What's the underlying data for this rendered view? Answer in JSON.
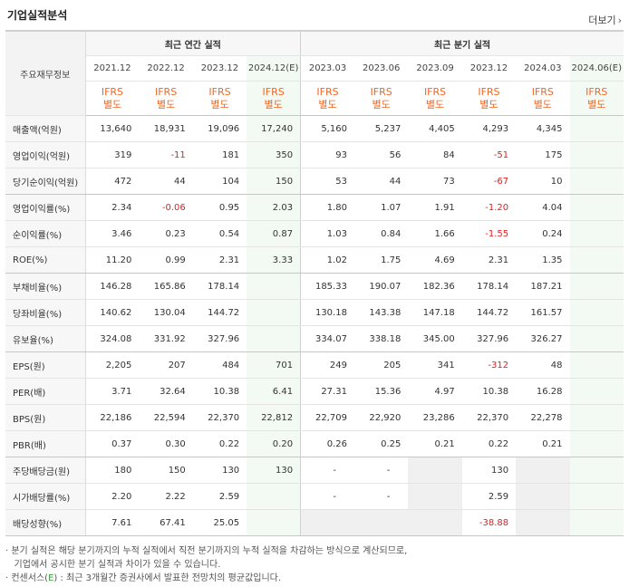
{
  "header": {
    "title": "기업실적분석",
    "more_label": "더보기",
    "more_arrow": "›"
  },
  "table": {
    "label_header": "주요재무정보",
    "group_annual": "최근 연간 실적",
    "group_quarter": "최근 분기 실적",
    "periods": [
      "2021.12",
      "2022.12",
      "2023.12",
      "2024.12(E)",
      "2023.03",
      "2023.06",
      "2023.09",
      "2023.12",
      "2024.03",
      "2024.06(E)"
    ],
    "ifrs_top": "IFRS",
    "ifrs_bottom": "별도",
    "rows": [
      {
        "label": "매출액(억원)",
        "values": [
          "13,640",
          "18,931",
          "19,096",
          "17,240",
          "5,160",
          "5,237",
          "4,405",
          "4,293",
          "4,345",
          ""
        ]
      },
      {
        "label": "영업이익(억원)",
        "values": [
          "319",
          "-11",
          "181",
          "350",
          "93",
          "56",
          "84",
          "-51",
          "175",
          ""
        ]
      },
      {
        "label": "당기순이익(억원)",
        "values": [
          "472",
          "44",
          "104",
          "150",
          "53",
          "44",
          "73",
          "-67",
          "10",
          ""
        ]
      },
      {
        "label": "영업이익률(%)",
        "values": [
          "2.34",
          "-0.06",
          "0.95",
          "2.03",
          "1.80",
          "1.07",
          "1.91",
          "-1.20",
          "4.04",
          ""
        ]
      },
      {
        "label": "순이익률(%)",
        "values": [
          "3.46",
          "0.23",
          "0.54",
          "0.87",
          "1.03",
          "0.84",
          "1.66",
          "-1.55",
          "0.24",
          ""
        ]
      },
      {
        "label": "ROE(%)",
        "values": [
          "11.20",
          "0.99",
          "2.31",
          "3.33",
          "1.02",
          "1.75",
          "4.69",
          "2.31",
          "1.35",
          ""
        ]
      },
      {
        "label": "부채비율(%)",
        "values": [
          "146.28",
          "165.86",
          "178.14",
          "",
          "185.33",
          "190.07",
          "182.36",
          "178.14",
          "187.21",
          ""
        ]
      },
      {
        "label": "당좌비율(%)",
        "values": [
          "140.62",
          "130.04",
          "144.72",
          "",
          "130.18",
          "143.38",
          "147.18",
          "144.72",
          "161.57",
          ""
        ]
      },
      {
        "label": "유보율(%)",
        "values": [
          "324.08",
          "331.92",
          "327.96",
          "",
          "334.07",
          "338.18",
          "345.00",
          "327.96",
          "326.27",
          ""
        ]
      },
      {
        "label": "EPS(원)",
        "values": [
          "2,205",
          "207",
          "484",
          "701",
          "249",
          "205",
          "341",
          "-312",
          "48",
          ""
        ]
      },
      {
        "label": "PER(배)",
        "values": [
          "3.71",
          "32.64",
          "10.38",
          "6.41",
          "27.31",
          "15.36",
          "4.97",
          "10.38",
          "16.28",
          ""
        ]
      },
      {
        "label": "BPS(원)",
        "values": [
          "22,186",
          "22,594",
          "22,370",
          "22,812",
          "22,709",
          "22,920",
          "23,286",
          "22,370",
          "22,278",
          ""
        ]
      },
      {
        "label": "PBR(배)",
        "values": [
          "0.37",
          "0.30",
          "0.22",
          "0.20",
          "0.26",
          "0.25",
          "0.21",
          "0.22",
          "0.21",
          ""
        ]
      },
      {
        "label": "주당배당금(원)",
        "values": [
          "180",
          "150",
          "130",
          "130",
          "-",
          "-",
          "",
          "130",
          "",
          ""
        ]
      },
      {
        "label": "시가배당률(%)",
        "values": [
          "2.20",
          "2.22",
          "2.59",
          "",
          "-",
          "-",
          "",
          "2.59",
          "",
          ""
        ]
      },
      {
        "label": "배당성향(%)",
        "values": [
          "7.61",
          "67.41",
          "25.05",
          "",
          "",
          "",
          "",
          "-38.88",
          "",
          ""
        ]
      }
    ]
  },
  "notes": {
    "line1": "· 분기 실적은 해당 분기까지의 누적 실적에서 직전 분기까지의 누적 실적을 차감하는 방식으로 계산되므로,",
    "line2": "  기업에서 공시한 분기 실적과 차이가 있을 수 있습니다.",
    "line3_pre": "· 컨센서스(",
    "line3_e": "E",
    "line3_post": ") : 최근 3개월간 증권사에서 발표한 전망치의 평균값입니다."
  }
}
